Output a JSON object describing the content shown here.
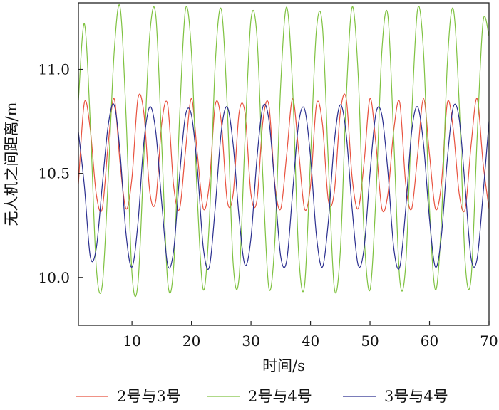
{
  "chart_data": {
    "type": "line",
    "xlabel": "时间/s",
    "ylabel": "无人机之间距离/m",
    "xlim": [
      1,
      70
    ],
    "ylim": [
      9.77,
      11.32
    ],
    "x_ticks": [
      10,
      20,
      30,
      40,
      50,
      60,
      70
    ],
    "y_ticks": [
      10.0,
      10.5,
      11.0
    ],
    "y_tick_labels": [
      "10.0",
      "10.5",
      "11.0"
    ],
    "grid": false,
    "legend_position": "bottom",
    "series": [
      {
        "name": "2号与3号",
        "color": "#e8523f",
        "x": [
          1,
          2,
          3,
          4,
          5,
          6,
          7,
          8,
          9,
          10,
          11,
          12,
          13,
          14,
          15,
          16,
          17,
          18,
          19,
          20,
          21,
          22,
          23,
          24,
          25,
          26,
          27,
          28,
          29,
          30,
          31,
          32,
          33,
          34,
          35,
          36,
          37,
          38,
          39,
          40,
          41,
          42,
          43,
          44,
          45,
          46,
          47,
          48,
          49,
          50,
          51,
          52,
          53,
          54,
          55,
          56,
          57,
          58,
          59,
          60,
          61,
          62,
          63,
          64,
          65,
          66,
          67,
          68,
          69,
          70
        ],
        "y": [
          10.45,
          10.84,
          10.71,
          10.4,
          10.33,
          10.64,
          10.86,
          10.55,
          10.33,
          10.48,
          10.86,
          10.79,
          10.41,
          10.37,
          10.74,
          10.83,
          10.44,
          10.33,
          10.61,
          10.86,
          10.59,
          10.33,
          10.45,
          10.83,
          10.75,
          10.37,
          10.4,
          10.79,
          10.79,
          10.4,
          10.37,
          10.75,
          10.83,
          10.45,
          10.33,
          10.59,
          10.86,
          10.61,
          10.33,
          10.44,
          10.83,
          10.74,
          10.37,
          10.41,
          10.79,
          10.86,
          10.48,
          10.33,
          10.55,
          10.86,
          10.64,
          10.33,
          10.4,
          10.71,
          10.84,
          10.45,
          10.33,
          10.59,
          10.86,
          10.59,
          10.33,
          10.45,
          10.84,
          10.71,
          10.4,
          10.33,
          10.64,
          10.86,
          10.55,
          10.33
        ]
      },
      {
        "name": "2号与4号",
        "color": "#7fc241",
        "x": [
          1,
          2,
          3,
          4,
          5,
          6,
          7,
          8,
          9,
          10,
          11,
          12,
          13,
          14,
          15,
          16,
          17,
          18,
          19,
          20,
          21,
          22,
          23,
          24,
          25,
          26,
          27,
          28,
          29,
          30,
          31,
          32,
          33,
          34,
          35,
          36,
          37,
          38,
          39,
          40,
          41,
          42,
          43,
          44,
          45,
          46,
          47,
          48,
          49,
          50,
          51,
          52,
          53,
          54,
          55,
          56,
          57,
          58,
          59,
          60,
          61,
          62,
          63,
          64,
          65,
          66,
          67,
          68,
          69,
          70
        ],
        "y": [
          10.85,
          11.22,
          10.74,
          10.05,
          9.96,
          10.47,
          11.08,
          11.3,
          10.78,
          10.02,
          9.97,
          10.58,
          11.17,
          11.26,
          10.64,
          9.98,
          10.05,
          10.77,
          11.29,
          11.08,
          10.37,
          9.94,
          10.27,
          11.03,
          11.29,
          10.83,
          10.07,
          10.0,
          10.67,
          11.24,
          11.16,
          10.48,
          9.95,
          10.17,
          10.93,
          11.3,
          10.91,
          10.12,
          9.96,
          10.57,
          11.19,
          11.21,
          10.55,
          9.95,
          10.12,
          10.86,
          11.3,
          10.98,
          10.21,
          9.94,
          10.39,
          11.09,
          11.26,
          10.66,
          9.99,
          10.06,
          10.77,
          11.29,
          11.08,
          10.33,
          9.94,
          10.27,
          11.03,
          11.29,
          10.83,
          10.07,
          10.0,
          10.67,
          11.23,
          11.16
        ]
      },
      {
        "name": "3号与4号",
        "color": "#2b2f8f",
        "x": [
          1,
          2,
          3,
          4,
          5,
          6,
          7,
          8,
          9,
          10,
          11,
          12,
          13,
          14,
          15,
          16,
          17,
          18,
          19,
          20,
          21,
          22,
          23,
          24,
          25,
          26,
          27,
          28,
          29,
          30,
          31,
          32,
          33,
          34,
          35,
          36,
          37,
          38,
          39,
          40,
          41,
          42,
          43,
          44,
          45,
          46,
          47,
          48,
          49,
          50,
          51,
          52,
          53,
          54,
          55,
          56,
          57,
          58,
          59,
          60,
          61,
          62,
          63,
          64,
          65,
          66,
          67,
          68,
          69,
          70
        ],
        "y": [
          10.7,
          10.44,
          10.1,
          10.14,
          10.44,
          10.73,
          10.83,
          10.6,
          10.21,
          10.05,
          10.26,
          10.65,
          10.82,
          10.7,
          10.36,
          10.06,
          10.13,
          10.49,
          10.78,
          10.78,
          10.52,
          10.14,
          10.05,
          10.34,
          10.7,
          10.82,
          10.64,
          10.29,
          10.06,
          10.19,
          10.57,
          10.82,
          10.76,
          10.44,
          10.1,
          10.08,
          10.41,
          10.74,
          10.81,
          10.58,
          10.2,
          10.05,
          10.27,
          10.65,
          10.83,
          10.69,
          10.33,
          10.06,
          10.14,
          10.5,
          10.79,
          10.78,
          10.51,
          10.14,
          10.05,
          10.33,
          10.7,
          10.82,
          10.64,
          10.28,
          10.05,
          10.2,
          10.57,
          10.82,
          10.76,
          10.43,
          10.09,
          10.09,
          10.4,
          10.75
        ]
      }
    ]
  }
}
